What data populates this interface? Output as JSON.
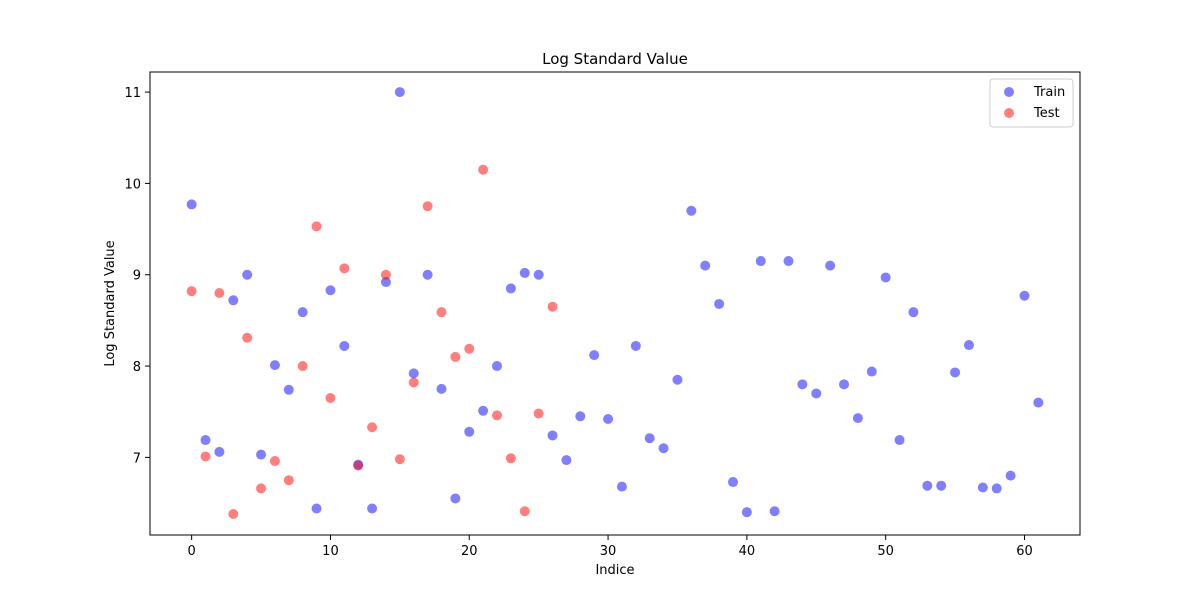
{
  "chart_data": {
    "type": "scatter",
    "title": "Log Standard Value",
    "xlabel": "Indice",
    "ylabel": "Log Standard Value",
    "xlim": [
      -3,
      64
    ],
    "ylim": [
      6.15,
      11.22
    ],
    "xticks": [
      0,
      10,
      20,
      30,
      40,
      50,
      60
    ],
    "yticks": [
      7,
      8,
      9,
      10,
      11
    ],
    "grid": false,
    "legend_position": "top-right",
    "series": [
      {
        "name": "Train",
        "color": "#0000ff",
        "points": [
          [
            0,
            9.77
          ],
          [
            1,
            7.19
          ],
          [
            2,
            7.06
          ],
          [
            3,
            8.72
          ],
          [
            4,
            9.0
          ],
          [
            5,
            7.03
          ],
          [
            6,
            8.01
          ],
          [
            7,
            7.74
          ],
          [
            8,
            8.59
          ],
          [
            9,
            6.44
          ],
          [
            10,
            8.83
          ],
          [
            11,
            8.22
          ],
          [
            12,
            6.92
          ],
          [
            13,
            6.44
          ],
          [
            14,
            8.92
          ],
          [
            15,
            11.0
          ],
          [
            16,
            7.92
          ],
          [
            17,
            9.0
          ],
          [
            18,
            7.75
          ],
          [
            19,
            6.55
          ],
          [
            20,
            7.28
          ],
          [
            21,
            7.51
          ],
          [
            22,
            8.0
          ],
          [
            23,
            8.85
          ],
          [
            24,
            9.02
          ],
          [
            25,
            9.0
          ],
          [
            26,
            7.24
          ],
          [
            27,
            6.97
          ],
          [
            28,
            7.45
          ],
          [
            29,
            8.12
          ],
          [
            30,
            7.42
          ],
          [
            31,
            6.68
          ],
          [
            32,
            8.22
          ],
          [
            33,
            7.21
          ],
          [
            34,
            7.1
          ],
          [
            35,
            7.85
          ],
          [
            36,
            9.7
          ],
          [
            37,
            9.1
          ],
          [
            38,
            8.68
          ],
          [
            39,
            6.73
          ],
          [
            40,
            6.4
          ],
          [
            41,
            9.15
          ],
          [
            42,
            6.41
          ],
          [
            43,
            9.15
          ],
          [
            44,
            7.8
          ],
          [
            45,
            7.7
          ],
          [
            46,
            9.1
          ],
          [
            47,
            7.8
          ],
          [
            48,
            7.43
          ],
          [
            49,
            7.94
          ],
          [
            50,
            8.97
          ],
          [
            51,
            7.19
          ],
          [
            52,
            8.59
          ],
          [
            53,
            6.69
          ],
          [
            54,
            6.69
          ],
          [
            55,
            7.93
          ],
          [
            56,
            8.23
          ],
          [
            57,
            6.67
          ],
          [
            58,
            6.66
          ],
          [
            59,
            6.8
          ],
          [
            60,
            8.77
          ],
          [
            61,
            7.6
          ]
        ]
      },
      {
        "name": "Test",
        "color": "#ff0000",
        "points": [
          [
            0,
            8.82
          ],
          [
            1,
            7.01
          ],
          [
            2,
            8.8
          ],
          [
            3,
            6.38
          ],
          [
            4,
            8.31
          ],
          [
            5,
            6.66
          ],
          [
            6,
            6.96
          ],
          [
            7,
            6.75
          ],
          [
            8,
            8.0
          ],
          [
            9,
            9.53
          ],
          [
            10,
            7.65
          ],
          [
            11,
            9.07
          ],
          [
            12,
            6.91
          ],
          [
            13,
            7.33
          ],
          [
            14,
            9.0
          ],
          [
            15,
            6.98
          ],
          [
            16,
            7.82
          ],
          [
            17,
            9.75
          ],
          [
            18,
            8.59
          ],
          [
            19,
            8.1
          ],
          [
            20,
            8.19
          ],
          [
            21,
            10.15
          ],
          [
            22,
            7.46
          ],
          [
            23,
            6.99
          ],
          [
            24,
            6.41
          ],
          [
            25,
            7.48
          ],
          [
            26,
            8.65
          ]
        ]
      }
    ]
  }
}
